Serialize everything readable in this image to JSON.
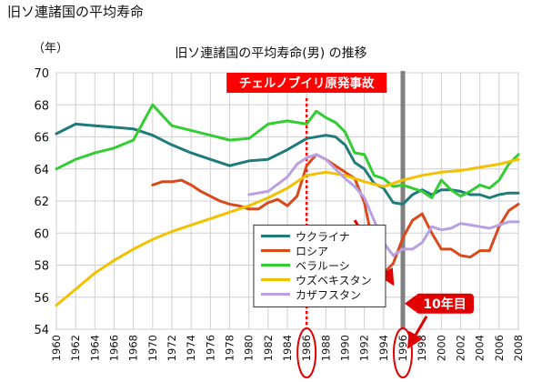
{
  "page": {
    "title": "旧ソ連諸国の平均寿命"
  },
  "chart_data": {
    "type": "line",
    "title": "旧ソ連諸国の平均寿命(男) の推移",
    "ylabel": "（年）",
    "xlabel": "",
    "xlim": [
      1960,
      2008
    ],
    "ylim": [
      54,
      70
    ],
    "x_ticks": [
      1960,
      1962,
      1964,
      1966,
      1968,
      1970,
      1972,
      1974,
      1976,
      1978,
      1980,
      1982,
      1984,
      1986,
      1988,
      1990,
      1992,
      1994,
      1996,
      1998,
      2000,
      2002,
      2004,
      2006,
      2008
    ],
    "y_ticks": [
      54,
      56,
      58,
      60,
      62,
      64,
      66,
      68,
      70
    ],
    "grid": true,
    "legend_position": "bottom-center",
    "series": [
      {
        "name": "ウクライナ",
        "color": "#1f7a7a",
        "points": [
          [
            1960,
            66.2
          ],
          [
            1962,
            66.8
          ],
          [
            1964,
            66.7
          ],
          [
            1966,
            66.6
          ],
          [
            1968,
            66.5
          ],
          [
            1970,
            66.1
          ],
          [
            1972,
            65.5
          ],
          [
            1974,
            65.0
          ],
          [
            1976,
            64.6
          ],
          [
            1978,
            64.2
          ],
          [
            1980,
            64.5
          ],
          [
            1982,
            64.6
          ],
          [
            1984,
            65.2
          ],
          [
            1986,
            65.9
          ],
          [
            1988,
            66.1
          ],
          [
            1989,
            66.0
          ],
          [
            1990,
            65.5
          ],
          [
            1991,
            64.4
          ],
          [
            1992,
            64.0
          ],
          [
            1993,
            63.1
          ],
          [
            1994,
            62.8
          ],
          [
            1995,
            61.9
          ],
          [
            1996,
            61.8
          ],
          [
            1997,
            62.4
          ],
          [
            1998,
            62.7
          ],
          [
            1999,
            62.4
          ],
          [
            2000,
            62.7
          ],
          [
            2001,
            62.7
          ],
          [
            2002,
            62.6
          ],
          [
            2003,
            62.4
          ],
          [
            2004,
            62.4
          ],
          [
            2005,
            62.2
          ],
          [
            2006,
            62.4
          ],
          [
            2007,
            62.5
          ],
          [
            2008,
            62.5
          ]
        ]
      },
      {
        "name": "ロシア",
        "color": "#d84a1b",
        "points": [
          [
            1970,
            63.0
          ],
          [
            1971,
            63.2
          ],
          [
            1972,
            63.2
          ],
          [
            1973,
            63.3
          ],
          [
            1974,
            63.0
          ],
          [
            1975,
            62.6
          ],
          [
            1976,
            62.3
          ],
          [
            1977,
            62.0
          ],
          [
            1978,
            61.8
          ],
          [
            1979,
            61.7
          ],
          [
            1980,
            61.5
          ],
          [
            1981,
            61.5
          ],
          [
            1982,
            61.9
          ],
          [
            1983,
            62.1
          ],
          [
            1984,
            61.7
          ],
          [
            1985,
            62.3
          ],
          [
            1986,
            64.2
          ],
          [
            1987,
            64.9
          ],
          [
            1988,
            64.6
          ],
          [
            1989,
            64.2
          ],
          [
            1990,
            63.8
          ],
          [
            1991,
            63.4
          ],
          [
            1992,
            61.9
          ],
          [
            1993,
            59.0
          ],
          [
            1994,
            57.5
          ],
          [
            1995,
            58.1
          ],
          [
            1996,
            59.7
          ],
          [
            1997,
            60.8
          ],
          [
            1998,
            61.2
          ],
          [
            1999,
            60.0
          ],
          [
            2000,
            59.0
          ],
          [
            2001,
            59.0
          ],
          [
            2002,
            58.6
          ],
          [
            2003,
            58.5
          ],
          [
            2004,
            58.9
          ],
          [
            2005,
            58.9
          ],
          [
            2006,
            60.4
          ],
          [
            2007,
            61.4
          ],
          [
            2008,
            61.8
          ]
        ]
      },
      {
        "name": "ベラルーシ",
        "color": "#33cc33",
        "points": [
          [
            1960,
            64.0
          ],
          [
            1962,
            64.6
          ],
          [
            1964,
            65.0
          ],
          [
            1966,
            65.3
          ],
          [
            1968,
            65.8
          ],
          [
            1970,
            68.0
          ],
          [
            1972,
            66.7
          ],
          [
            1974,
            66.4
          ],
          [
            1976,
            66.1
          ],
          [
            1978,
            65.8
          ],
          [
            1980,
            65.9
          ],
          [
            1982,
            66.8
          ],
          [
            1984,
            67.0
          ],
          [
            1986,
            66.8
          ],
          [
            1987,
            67.6
          ],
          [
            1988,
            67.2
          ],
          [
            1989,
            66.9
          ],
          [
            1990,
            66.3
          ],
          [
            1991,
            65.0
          ],
          [
            1992,
            64.9
          ],
          [
            1993,
            63.6
          ],
          [
            1994,
            63.4
          ],
          [
            1995,
            62.9
          ],
          [
            1996,
            63.0
          ],
          [
            1997,
            62.8
          ],
          [
            1998,
            62.6
          ],
          [
            1999,
            62.2
          ],
          [
            2000,
            63.3
          ],
          [
            2001,
            62.7
          ],
          [
            2002,
            62.3
          ],
          [
            2003,
            62.6
          ],
          [
            2004,
            63.0
          ],
          [
            2005,
            62.8
          ],
          [
            2006,
            63.3
          ],
          [
            2007,
            64.3
          ],
          [
            2008,
            64.9
          ]
        ]
      },
      {
        "name": "ウズベキスタン",
        "color": "#f2c200",
        "points": [
          [
            1960,
            55.5
          ],
          [
            1962,
            56.5
          ],
          [
            1964,
            57.5
          ],
          [
            1966,
            58.3
          ],
          [
            1968,
            59.0
          ],
          [
            1970,
            59.6
          ],
          [
            1972,
            60.1
          ],
          [
            1974,
            60.5
          ],
          [
            1976,
            60.9
          ],
          [
            1978,
            61.3
          ],
          [
            1980,
            61.7
          ],
          [
            1982,
            62.2
          ],
          [
            1984,
            62.8
          ],
          [
            1986,
            63.6
          ],
          [
            1988,
            63.8
          ],
          [
            1990,
            63.6
          ],
          [
            1992,
            63.2
          ],
          [
            1994,
            62.9
          ],
          [
            1996,
            63.3
          ],
          [
            1998,
            63.6
          ],
          [
            2000,
            63.8
          ],
          [
            2002,
            63.9
          ],
          [
            2004,
            64.1
          ],
          [
            2006,
            64.3
          ],
          [
            2008,
            64.6
          ]
        ]
      },
      {
        "name": "カザフスタン",
        "color": "#b9a0e0",
        "points": [
          [
            1980,
            62.4
          ],
          [
            1982,
            62.6
          ],
          [
            1984,
            63.5
          ],
          [
            1985,
            64.3
          ],
          [
            1986,
            64.7
          ],
          [
            1987,
            64.9
          ],
          [
            1988,
            64.6
          ],
          [
            1989,
            64.0
          ],
          [
            1990,
            63.4
          ],
          [
            1991,
            62.9
          ],
          [
            1992,
            62.2
          ],
          [
            1993,
            60.8
          ],
          [
            1994,
            59.4
          ],
          [
            1995,
            58.6
          ],
          [
            1996,
            59.0
          ],
          [
            1997,
            59.0
          ],
          [
            1998,
            59.4
          ],
          [
            1999,
            60.4
          ],
          [
            2000,
            60.2
          ],
          [
            2001,
            60.3
          ],
          [
            2002,
            60.6
          ],
          [
            2003,
            60.5
          ],
          [
            2004,
            60.4
          ],
          [
            2005,
            60.3
          ],
          [
            2006,
            60.5
          ],
          [
            2007,
            60.7
          ],
          [
            2008,
            60.7
          ]
        ]
      }
    ],
    "annotations": {
      "event_label": "チェルノブイリ原発事故",
      "event_year": 1986,
      "marker_year": 1996,
      "marker_label": "10年目",
      "highlighted_tick_years": [
        1986,
        1996
      ],
      "trend_arrow": {
        "from": [
          1991,
          60.8
        ],
        "to": [
          1995,
          56.8
        ]
      }
    }
  }
}
